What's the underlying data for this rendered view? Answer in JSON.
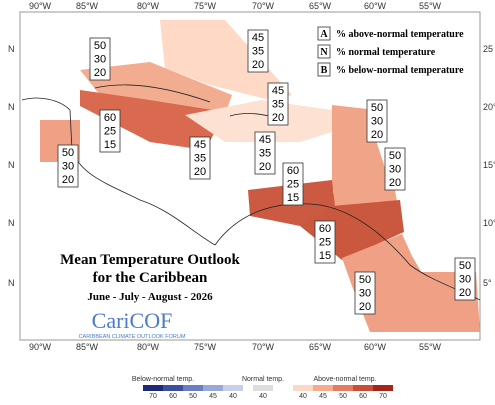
{
  "map": {
    "title": [
      "Mean Temperature Outlook",
      "for the Caribbean"
    ],
    "season": "June - July - August - 2026",
    "logo": "CariCOF",
    "logo_sub": "CARIBBEAN CLIMATE OUTLOOK FORUM",
    "lon_labels": [
      "90°W",
      "85°W",
      "80°W",
      "75°W",
      "70°W",
      "65°W",
      "60°W",
      "55°W"
    ],
    "lat_left": [
      "N",
      "N",
      "N",
      "N",
      "N"
    ],
    "lat_right": [
      "25",
      "20°",
      "15°",
      "10°",
      "5°"
    ],
    "key": [
      {
        "letter": "A",
        "text": "% above-normal temperature"
      },
      {
        "letter": "N",
        "text": "% normal temperature"
      },
      {
        "letter": "B",
        "text": "% below-normal temperature"
      }
    ],
    "regions": [
      {
        "values": [
          45,
          35,
          20
        ]
      },
      {
        "values": [
          50,
          30,
          20
        ]
      },
      {
        "values": [
          60,
          25,
          15
        ]
      },
      {
        "values": [
          50,
          30,
          20
        ]
      },
      {
        "values": [
          45,
          35,
          20
        ]
      },
      {
        "values": [
          45,
          35,
          20
        ]
      },
      {
        "values": [
          45,
          35,
          20
        ]
      },
      {
        "values": [
          50,
          30,
          20
        ]
      },
      {
        "values": [
          50,
          30,
          20
        ]
      },
      {
        "values": [
          60,
          25,
          15
        ]
      },
      {
        "values": [
          60,
          25,
          15
        ]
      },
      {
        "values": [
          50,
          30,
          20
        ]
      },
      {
        "values": [
          50,
          30,
          20
        ]
      }
    ],
    "colorbar": {
      "below_title": "Below-normal temp.",
      "below_ticks": [
        70,
        60,
        50,
        45,
        40
      ],
      "normal_title": "Normal temp.",
      "normal_ticks": [
        40
      ],
      "above_title": "Above-normal temp.",
      "above_ticks": [
        40,
        45,
        50,
        60,
        70
      ]
    }
  }
}
